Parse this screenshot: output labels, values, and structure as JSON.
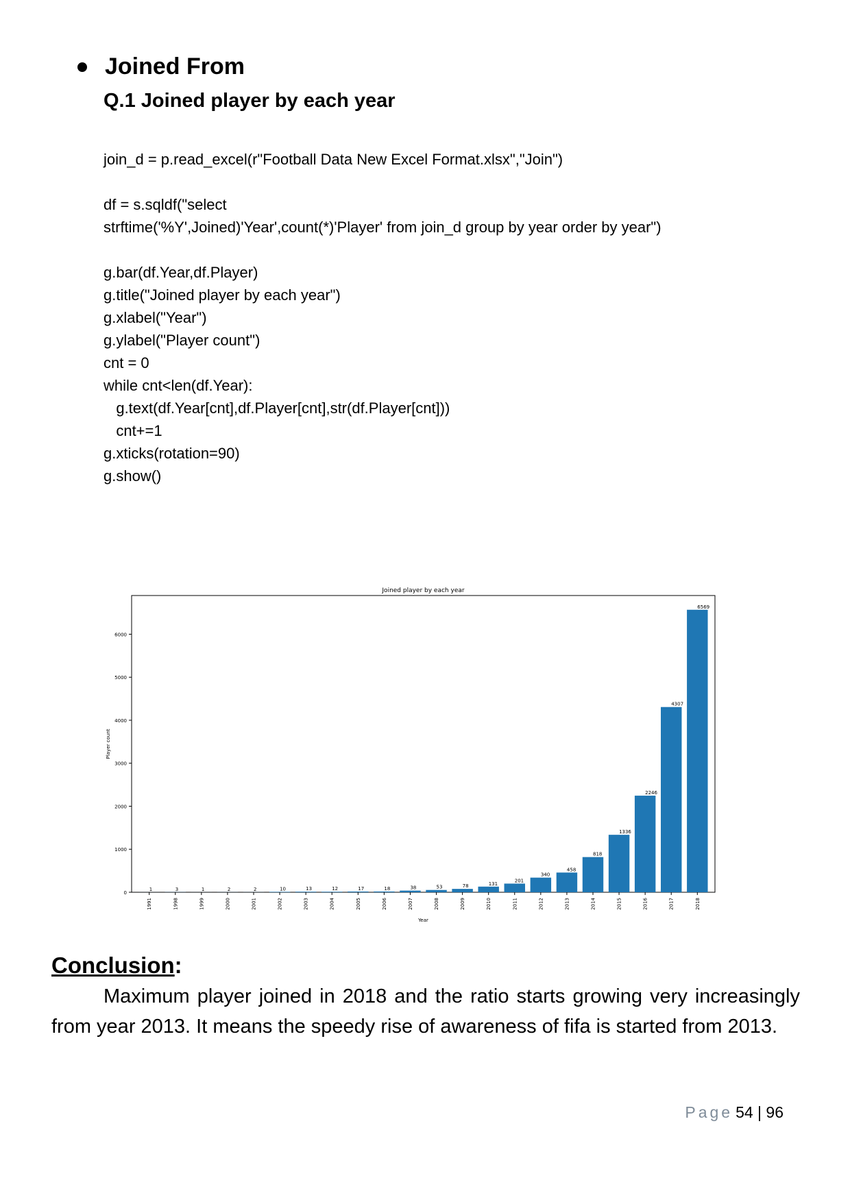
{
  "section": {
    "heading": "Joined From"
  },
  "question": {
    "title": "Q.1 Joined player by each year"
  },
  "code": {
    "lines": [
      "join_d = p.read_excel(r\"Football Data New Excel Format.xlsx\",\"Join\")",
      "",
      "df = s.sqldf(\"select",
      "strftime('%Y',Joined)'Year',count(*)'Player' from join_d group by year order by year\")",
      "",
      "g.bar(df.Year,df.Player)",
      "g.title(\"Joined player by each year\")",
      "g.xlabel(\"Year\")",
      "g.ylabel(\"Player count\")",
      "cnt = 0",
      "while cnt<len(df.Year):",
      "   g.text(df.Year[cnt],df.Player[cnt],str(df.Player[cnt]))",
      "   cnt+=1",
      "g.xticks(rotation=90)",
      "g.show()"
    ]
  },
  "chart_data": {
    "type": "bar",
    "title": "Joined player by each year",
    "xlabel": "Year",
    "ylabel": "Player count",
    "categories": [
      "1991",
      "1998",
      "1999",
      "2000",
      "2001",
      "2002",
      "2003",
      "2004",
      "2005",
      "2006",
      "2007",
      "2008",
      "2009",
      "2010",
      "2011",
      "2012",
      "2013",
      "2014",
      "2015",
      "2016",
      "2017",
      "2018"
    ],
    "values": [
      1,
      3,
      1,
      2,
      2,
      10,
      13,
      12,
      17,
      18,
      38,
      53,
      78,
      131,
      201,
      340,
      458,
      818,
      1336,
      2246,
      4307,
      6569
    ],
    "ylim": [
      0,
      6900
    ],
    "yticks": [
      0,
      1000,
      2000,
      3000,
      4000,
      5000,
      6000
    ],
    "bar_color": "#1f77b4",
    "grid": false,
    "legend": "none"
  },
  "conclusion": {
    "heading": "Conclusion",
    "colon": ":",
    "text": "Maximum player joined in 2018 and the ratio starts growing very increasingly from year 2013. It means the speedy rise of awareness of fifa is started from 2013."
  },
  "footer": {
    "page_word": "Page",
    "page_number": "54 | 96"
  }
}
